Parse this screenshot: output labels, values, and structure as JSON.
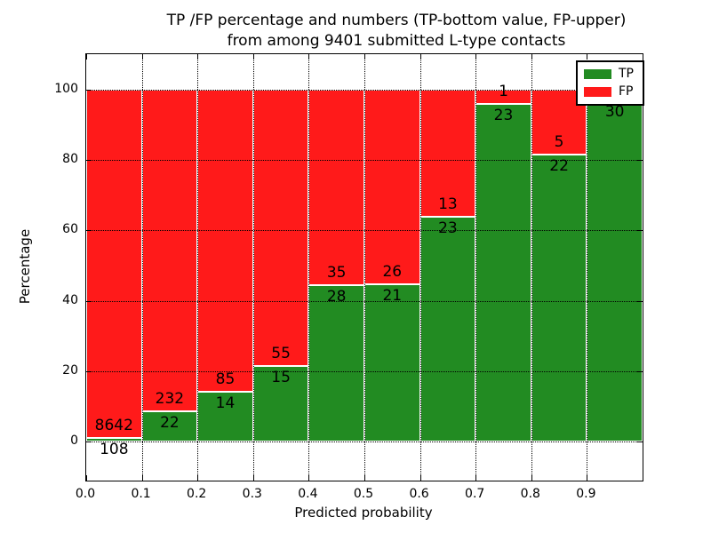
{
  "figure": {
    "title_line1": "TP /FP percentage and numbers (TP-bottom value, FP-upper)",
    "title_line2": "from among 9401 submitted L-type contacts",
    "xlabel": "Predicted probability",
    "ylabel": "Percentage"
  },
  "legend": {
    "entries": [
      {
        "label": "TP",
        "color": "#228B22"
      },
      {
        "label": "FP",
        "color": "#FF1A1A"
      }
    ]
  },
  "chart_data": {
    "type": "bar",
    "stacked": true,
    "title": "TP /FP percentage and numbers (TP-bottom value, FP-upper) from among 9401 submitted L-type contacts",
    "xlabel": "Predicted probability",
    "ylabel": "Percentage",
    "xlim": [
      0.0,
      1.0
    ],
    "ylim": [
      -11,
      110
    ],
    "grid": true,
    "legend_position": "upper right",
    "colors": {
      "tp": "#228B22",
      "fp": "#FF1A1A"
    },
    "xtick_values": [
      0.0,
      0.1,
      0.2,
      0.3,
      0.4,
      0.5,
      0.6,
      0.7,
      0.8,
      0.9
    ],
    "xtick_labels": [
      "0.0",
      "0.1",
      "0.2",
      "0.3",
      "0.4",
      "0.5",
      "0.6",
      "0.7",
      "0.8",
      "0.9"
    ],
    "ytick_values": [
      0,
      20,
      40,
      60,
      80,
      100
    ],
    "ytick_labels": [
      "0",
      "20",
      "40",
      "60",
      "80",
      "100"
    ],
    "bars": [
      {
        "x_start": 0.0,
        "x_end": 0.1,
        "tp_count": 108,
        "fp_count": 8642,
        "tp_pct": 1.2
      },
      {
        "x_start": 0.1,
        "x_end": 0.2,
        "tp_count": 22,
        "fp_count": 232,
        "tp_pct": 8.7
      },
      {
        "x_start": 0.2,
        "x_end": 0.3,
        "tp_count": 14,
        "fp_count": 85,
        "tp_pct": 14.1
      },
      {
        "x_start": 0.3,
        "x_end": 0.4,
        "tp_count": 15,
        "fp_count": 55,
        "tp_pct": 21.4
      },
      {
        "x_start": 0.4,
        "x_end": 0.5,
        "tp_count": 28,
        "fp_count": 35,
        "tp_pct": 44.4
      },
      {
        "x_start": 0.5,
        "x_end": 0.6,
        "tp_count": 21,
        "fp_count": 26,
        "tp_pct": 44.7
      },
      {
        "x_start": 0.6,
        "x_end": 0.7,
        "tp_count": 23,
        "fp_count": 13,
        "tp_pct": 63.9
      },
      {
        "x_start": 0.7,
        "x_end": 0.8,
        "tp_count": 23,
        "fp_count": 1,
        "tp_pct": 95.8
      },
      {
        "x_start": 0.8,
        "x_end": 0.9,
        "tp_count": 22,
        "fp_count": 5,
        "tp_pct": 81.5
      },
      {
        "x_start": 0.9,
        "x_end": 1.0,
        "tp_count": 30,
        "fp_count": null,
        "tp_pct": 96.8
      }
    ]
  }
}
